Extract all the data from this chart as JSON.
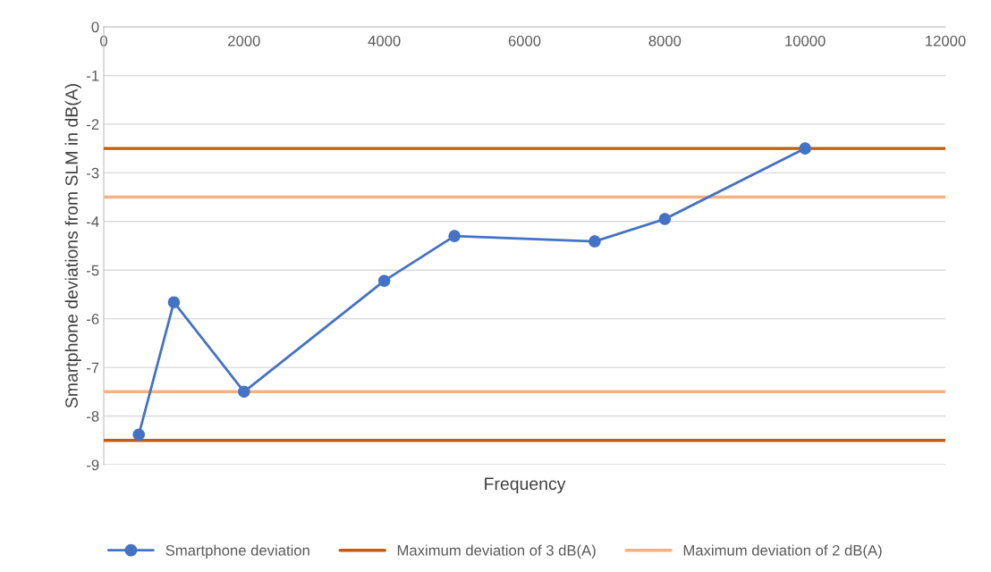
{
  "chart_data": {
    "type": "line",
    "xlabel": "Frequency",
    "ylabel": "Smartphone deviations from SLM in dB(A)",
    "x": [
      500,
      1000,
      2000,
      4000,
      5000,
      7000,
      8000,
      10000
    ],
    "series": [
      {
        "name": "Smartphone deviation",
        "color": "#4472c4",
        "values": [
          -8.38,
          -5.66,
          -7.5,
          -5.22,
          -4.3,
          -4.41,
          -3.95,
          -2.5
        ]
      }
    ],
    "ref_lines": [
      {
        "axis": "y",
        "value": -2.5,
        "label": "Maximum deviation of 3 dB(A)",
        "color": "#c55a11"
      },
      {
        "axis": "y",
        "value": -8.5,
        "color": "#c55a11"
      },
      {
        "axis": "y",
        "value": -3.5,
        "label": "Maximum deviation of 2 dB(A)",
        "color": "#f4b183"
      },
      {
        "axis": "y",
        "value": -7.5,
        "color": "#f4b183"
      }
    ],
    "xlim": [
      0,
      12000
    ],
    "xticks": [
      0,
      2000,
      4000,
      6000,
      8000,
      10000,
      12000
    ],
    "ylim": [
      -9,
      0
    ],
    "yticks": [
      -9,
      -8,
      -7,
      -6,
      -5,
      -4,
      -3,
      -2,
      -1,
      0
    ],
    "grid": "y",
    "legend": "bottom",
    "marker": "circle",
    "line_style": "solid"
  }
}
